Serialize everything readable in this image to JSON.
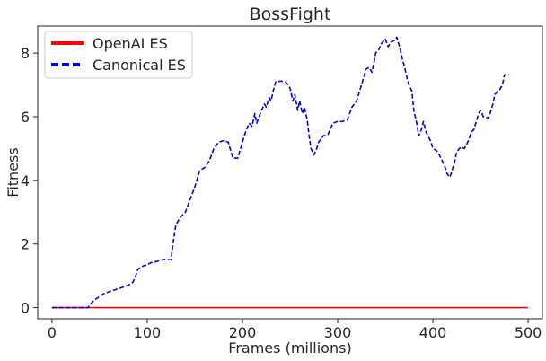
{
  "chart_data": {
    "type": "line",
    "title": "BossFight",
    "xlabel": "Frames (millions)",
    "ylabel": "Fitness",
    "xlim": [
      -15,
      515
    ],
    "ylim": [
      -0.35,
      8.85
    ],
    "xticks": [
      0,
      100,
      200,
      300,
      400,
      500
    ],
    "yticks": [
      0,
      2,
      4,
      6,
      8
    ],
    "grid": false,
    "legend_position": "top-left",
    "series": [
      {
        "name": "OpenAI ES",
        "color": "#ff0000",
        "style": "solid",
        "x": [
          0,
          500
        ],
        "y": [
          0,
          0
        ]
      },
      {
        "name": "Canonical ES",
        "color": "#0000dd",
        "style": "dashed",
        "x": [
          0,
          38,
          40,
          45,
          50,
          55,
          60,
          65,
          70,
          75,
          80,
          85,
          88,
          90,
          95,
          100,
          103,
          105,
          110,
          115,
          120,
          125,
          127,
          130,
          135,
          140,
          145,
          150,
          152,
          155,
          160,
          165,
          170,
          175,
          180,
          185,
          190,
          195,
          200,
          203,
          207,
          210,
          213,
          215,
          220,
          223,
          225,
          228,
          230,
          233,
          235,
          240,
          245,
          248,
          250,
          253,
          255,
          258,
          260,
          263,
          265,
          268,
          270,
          272,
          275,
          278,
          280,
          285,
          290,
          295,
          300,
          305,
          310,
          315,
          320,
          325,
          330,
          333,
          336,
          340,
          343,
          346,
          350,
          353,
          356,
          360,
          362,
          365,
          368,
          370,
          373,
          375,
          378,
          380,
          383,
          385,
          388,
          390,
          393,
          395,
          398,
          400,
          403,
          405,
          410,
          413,
          415,
          418,
          420,
          423,
          425,
          428,
          430,
          433,
          435,
          438,
          440,
          443,
          445,
          448,
          450,
          453,
          455,
          458,
          460,
          463,
          465,
          468,
          470,
          473,
          475,
          478,
          480
        ],
        "y": [
          0,
          0,
          0.1,
          0.25,
          0.35,
          0.45,
          0.5,
          0.55,
          0.6,
          0.65,
          0.7,
          0.8,
          1.0,
          1.2,
          1.3,
          1.35,
          1.4,
          1.42,
          1.45,
          1.5,
          1.52,
          1.5,
          2.0,
          2.6,
          2.85,
          3.0,
          3.4,
          3.8,
          4.0,
          4.3,
          4.4,
          4.6,
          5.0,
          5.2,
          5.25,
          5.2,
          4.7,
          4.7,
          5.2,
          5.5,
          5.8,
          5.7,
          6.1,
          5.8,
          6.2,
          6.4,
          6.3,
          6.6,
          6.5,
          6.9,
          7.1,
          7.12,
          7.1,
          7.0,
          6.9,
          6.5,
          6.7,
          6.2,
          6.5,
          6.1,
          6.3,
          5.9,
          5.4,
          5.0,
          4.8,
          5.0,
          5.2,
          5.4,
          5.45,
          5.8,
          5.85,
          5.85,
          5.9,
          6.3,
          6.5,
          7.0,
          7.5,
          7.55,
          7.4,
          8.0,
          8.1,
          8.3,
          8.45,
          8.2,
          8.35,
          8.4,
          8.5,
          8.2,
          7.8,
          7.6,
          7.2,
          7.0,
          6.8,
          6.2,
          5.8,
          5.4,
          5.6,
          5.85,
          5.5,
          5.4,
          5.2,
          5.0,
          4.95,
          4.9,
          4.6,
          4.4,
          4.2,
          4.1,
          4.3,
          4.6,
          4.9,
          5.0,
          5.05,
          5.0,
          5.1,
          5.3,
          5.5,
          5.6,
          5.8,
          6.1,
          6.2,
          6.0,
          6.0,
          5.95,
          6.1,
          6.4,
          6.7,
          6.8,
          6.85,
          7.0,
          7.3,
          7.35,
          7.3
        ]
      }
    ]
  }
}
